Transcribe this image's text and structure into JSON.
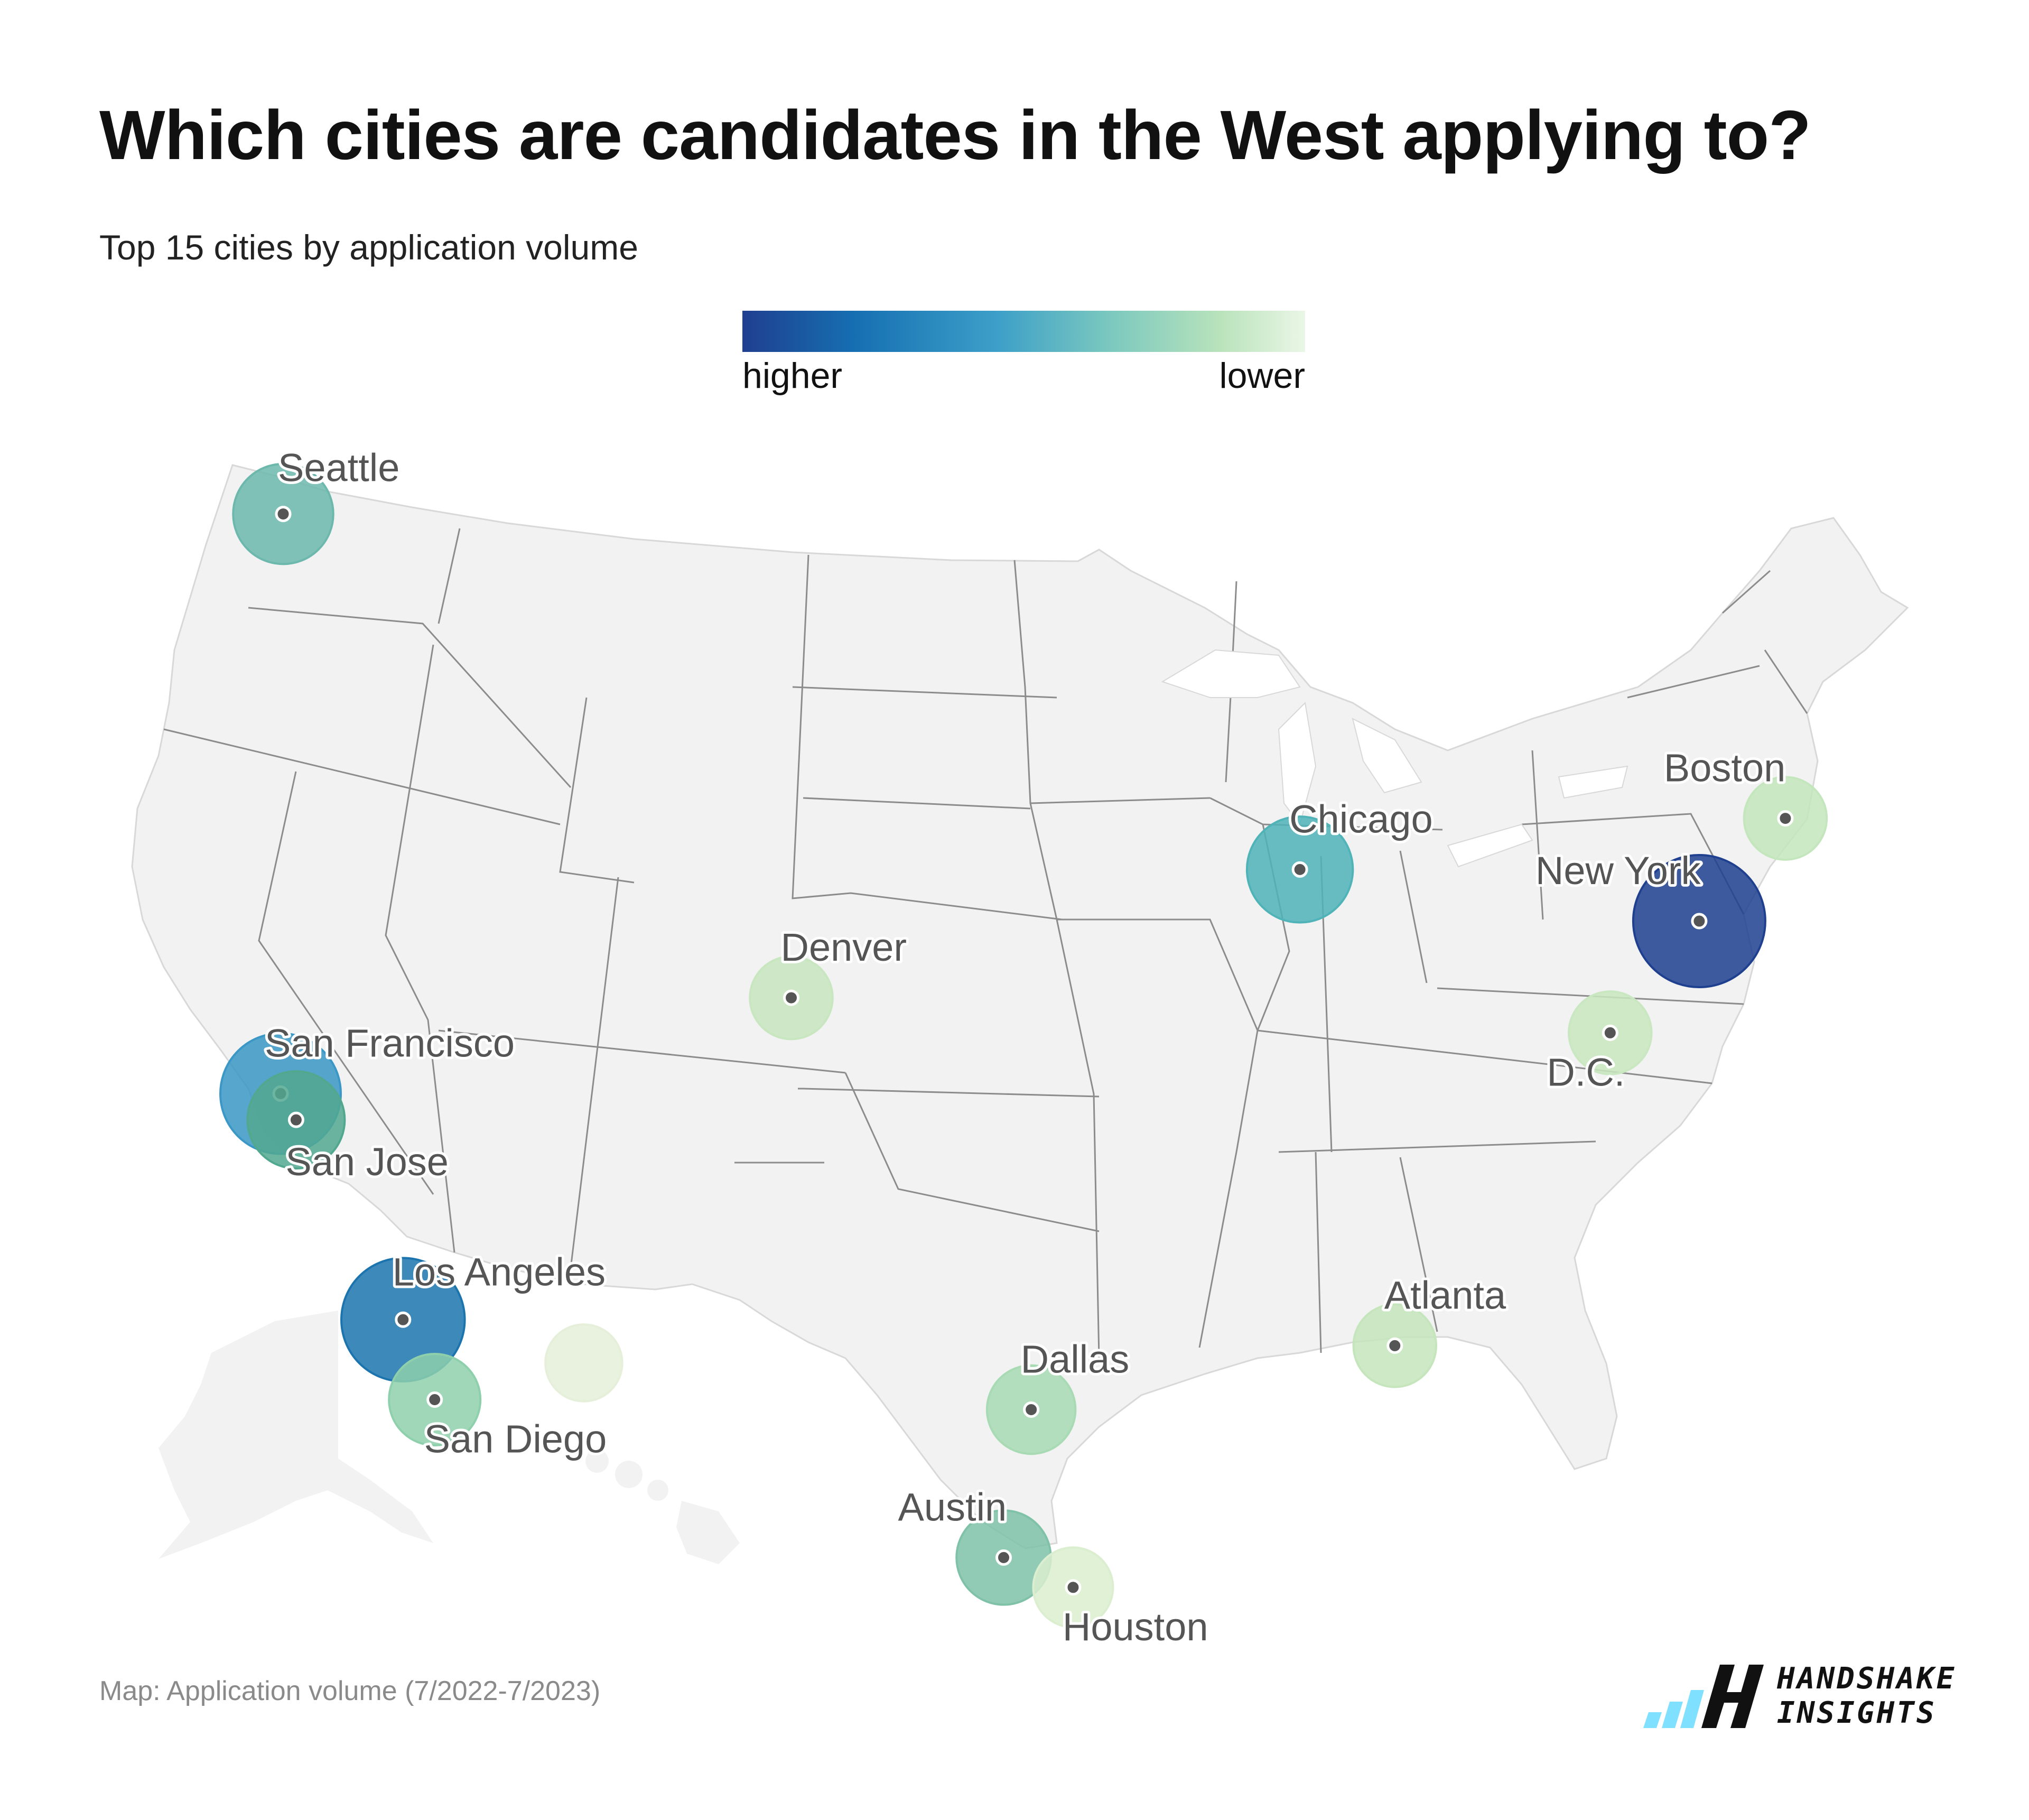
{
  "title": "Which cities are candidates in the West applying to?",
  "subtitle": "Top 15 cities by application volume",
  "legend": {
    "high_label": "higher",
    "low_label": "lower",
    "colors": [
      "#1f3f8f",
      "#166fb2",
      "#3c9fc8",
      "#7ac8bf",
      "#b9e3bb",
      "#eaf6e6"
    ]
  },
  "footer": "Map: Application volume (7/2022-7/2023)",
  "logo": {
    "line1": "HANDSHAKE",
    "line2": "INSIGHTS"
  },
  "map": {
    "region": "Contiguous United States (with Alaska and Hawaii insets)",
    "land_color": "#f2f2f2",
    "border_color": "#8c8c8c",
    "cities": [
      {
        "name": "Seattle",
        "lat": 47.61,
        "lon": -122.33,
        "level": 0.45,
        "color": "#6cb8ad"
      },
      {
        "name": "San Francisco",
        "lat": 37.77,
        "lon": -122.42,
        "level": 0.8,
        "color": "#3a97c6"
      },
      {
        "name": "San Jose",
        "lat": 37.34,
        "lon": -121.89,
        "level": 0.4,
        "color": "#52a88f"
      },
      {
        "name": "Los Angeles",
        "lat": 34.05,
        "lon": -118.24,
        "level": 0.85,
        "color": "#1b74ae"
      },
      {
        "name": "San Diego",
        "lat": 32.72,
        "lon": -117.16,
        "level": 0.3,
        "color": "#8ed0ab"
      },
      {
        "name": "Denver",
        "lat": 39.74,
        "lon": -104.99,
        "level": 0.15,
        "color": "#c8e6bf"
      },
      {
        "name": "Chicago",
        "lat": 41.88,
        "lon": -87.63,
        "level": 0.55,
        "color": "#4fb3b8"
      },
      {
        "name": "New York",
        "lat": 40.71,
        "lon": -74.0,
        "level": 1.0,
        "color": "#1f3f8f"
      },
      {
        "name": "Boston",
        "lat": 42.36,
        "lon": -71.06,
        "level": 0.15,
        "color": "#c4e6bd"
      },
      {
        "name": "D.C.",
        "lat": 38.9,
        "lon": -77.04,
        "level": 0.15,
        "color": "#c9e7c0"
      },
      {
        "name": "Atlanta",
        "lat": 33.75,
        "lon": -84.39,
        "level": 0.15,
        "color": "#c5e5bc"
      },
      {
        "name": "Dallas",
        "lat": 32.78,
        "lon": -96.8,
        "level": 0.25,
        "color": "#a8dab4"
      },
      {
        "name": "Austin",
        "lat": 30.27,
        "lon": -97.74,
        "level": 0.35,
        "color": "#7fc2a8"
      },
      {
        "name": "Houston",
        "lat": 29.76,
        "lon": -95.37,
        "level": 0.1,
        "color": "#dbeecf"
      },
      {
        "name": "",
        "lat": 33.45,
        "lon": -112.07,
        "level": 0.05,
        "color": "#e5efd9"
      }
    ]
  }
}
